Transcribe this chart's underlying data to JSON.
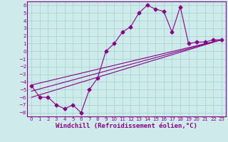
{
  "xlabel": "Windchill (Refroidissement éolien,°C)",
  "bg_color": "#ceeaea",
  "grid_color": "#a8d4d4",
  "line_color": "#880088",
  "xlim": [
    -0.5,
    23.5
  ],
  "ylim": [
    -8.5,
    6.5
  ],
  "xticks": [
    0,
    1,
    2,
    3,
    4,
    5,
    6,
    7,
    8,
    9,
    10,
    11,
    12,
    13,
    14,
    15,
    16,
    17,
    18,
    19,
    20,
    21,
    22,
    23
  ],
  "yticks": [
    -8,
    -7,
    -6,
    -5,
    -4,
    -3,
    -2,
    -1,
    0,
    1,
    2,
    3,
    4,
    5,
    6
  ],
  "windchill_x": [
    0,
    1,
    2,
    3,
    4,
    5,
    6,
    7,
    8,
    9,
    10,
    11,
    12,
    13,
    14,
    15,
    16,
    17,
    18,
    19,
    20,
    21,
    22,
    23
  ],
  "windchill_y": [
    -4.5,
    -6.0,
    -6.0,
    -7.0,
    -7.5,
    -7.0,
    -8.0,
    -5.0,
    -3.5,
    0.0,
    1.0,
    2.5,
    3.2,
    5.0,
    6.0,
    5.5,
    5.2,
    2.5,
    5.8,
    1.0,
    1.2,
    1.2,
    1.5,
    1.5
  ],
  "line1_x": [
    0,
    23
  ],
  "line1_y": [
    -5.2,
    1.5
  ],
  "line2_x": [
    0,
    23
  ],
  "line2_y": [
    -6.0,
    1.5
  ],
  "line3_x": [
    0,
    23
  ],
  "line3_y": [
    -4.4,
    1.5
  ],
  "marker": "D",
  "markersize": 2.5,
  "linewidth": 0.8,
  "tick_fontsize": 5.0,
  "xlabel_fontsize": 6.5
}
